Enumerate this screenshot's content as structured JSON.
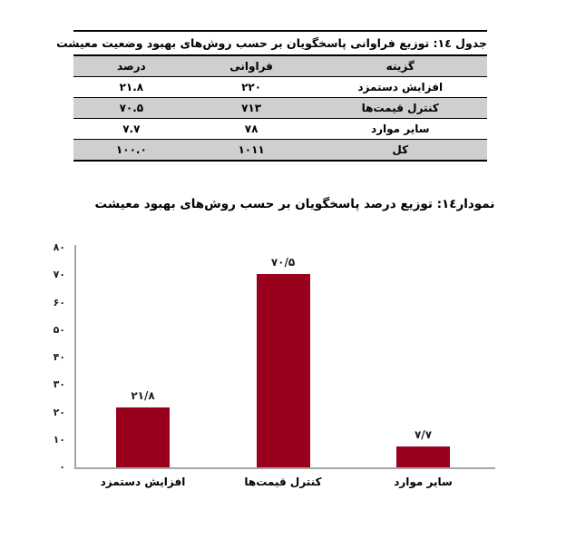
{
  "table": {
    "title": "جدول ١٤: توزیع فراوانی پاسخگویان بر حسب روش‌های بهبود وضعیت معیشت",
    "headers": [
      "گزینه",
      "فراوانی",
      "درصد"
    ],
    "rows": [
      {
        "option": "افزایش دستمزد",
        "frequency": "۲۲۰",
        "percent": "۲۱.۸"
      },
      {
        "option": "کنترل قیمت‌ها",
        "frequency": "۷۱۳",
        "percent": "۷۰.۵"
      },
      {
        "option": "سایر موارد",
        "frequency": "۷۸",
        "percent": "۷.۷"
      },
      {
        "option": "کل",
        "frequency": "۱۰۱۱",
        "percent": "۱۰۰.۰"
      }
    ],
    "shade_color": "#CFCFCF"
  },
  "chart": {
    "title": "نمودار١٤: توزیع درصد پاسخگویان بر حسب روش‌های بهبود معیشت"
  },
  "chart_data": {
    "type": "bar",
    "title": "نمودار١٤: توزیع درصد پاسخگویان بر حسب روش‌های بهبود معیشت",
    "categories": [
      "افزایش دستمزد",
      "کنترل قیمت‌ها",
      "سایر موارد"
    ],
    "values": [
      21.8,
      70.5,
      7.7
    ],
    "value_labels": [
      "۲۱/۸",
      "۷۰/۵",
      "۷/۷"
    ],
    "xlabel": "",
    "ylabel": "",
    "ylim": [
      0,
      80
    ],
    "ytick_step": 10,
    "ytick_labels": [
      "۰",
      "۱۰",
      "۲۰",
      "۳۰",
      "۴۰",
      "۵۰",
      "۶۰",
      "۷۰",
      "۸۰"
    ],
    "grid": false,
    "legend_position": "none",
    "bar_color": "#98001E",
    "axis_color": "#A6A6A6",
    "number_color": "#1C1C28"
  }
}
